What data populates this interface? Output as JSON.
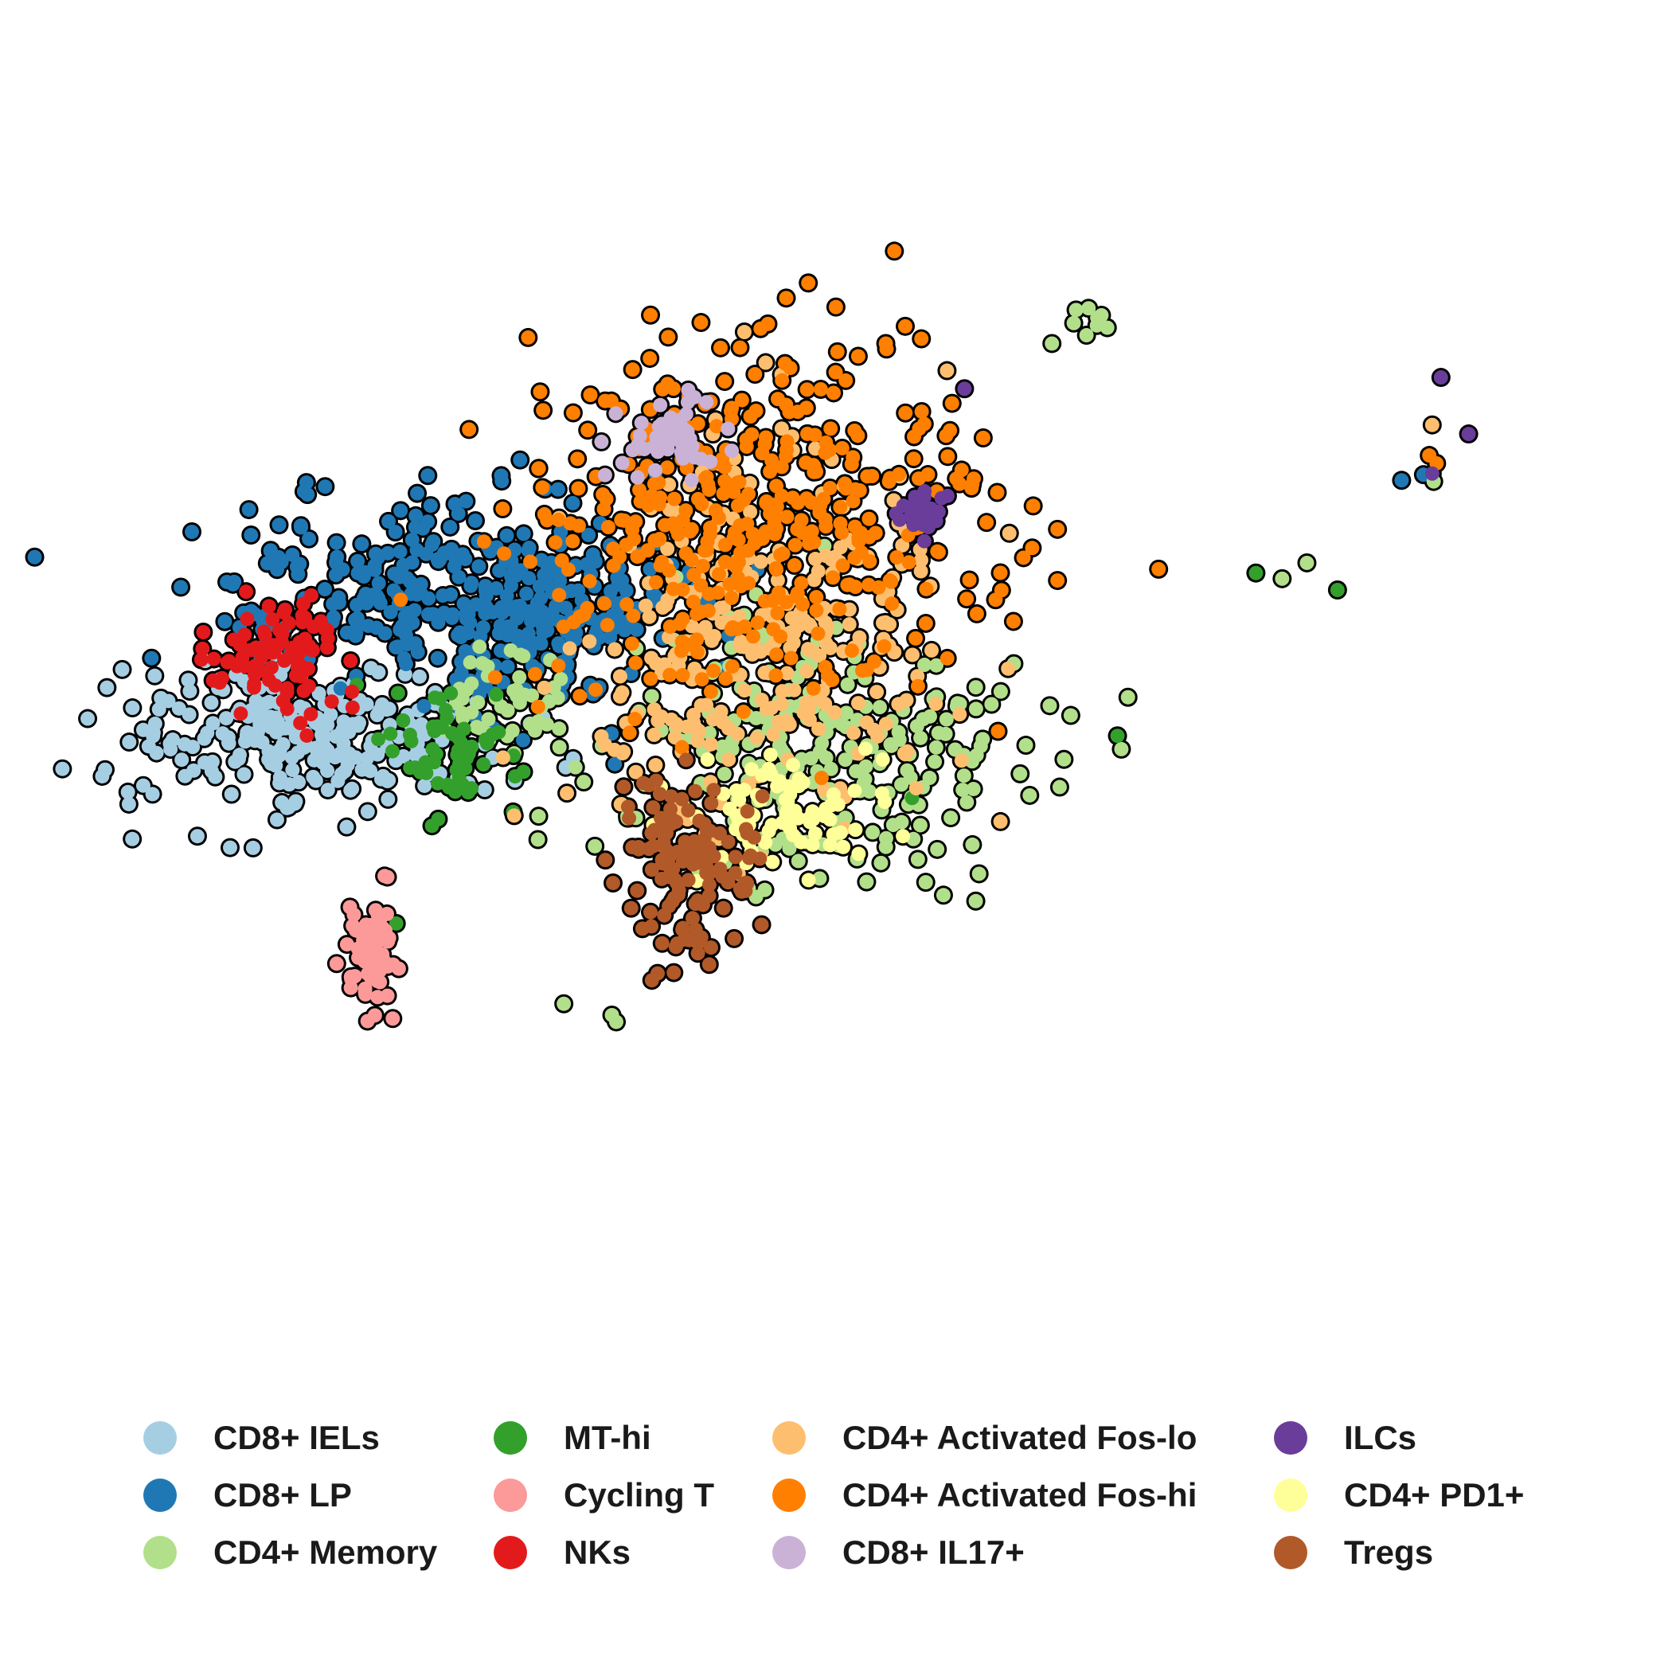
{
  "chart_data": {
    "type": "scatter",
    "title": "",
    "xlabel": "",
    "ylabel": "",
    "axes_visible": false,
    "grid": false,
    "legend_position": "bottom",
    "point_outline_color": "#000000",
    "xlim": [
      0,
      100
    ],
    "ylim": [
      0,
      100
    ],
    "series": [
      {
        "name": "CD8+ IELs",
        "color": "#A6CEE3",
        "blobs": [
          [
            13,
            49,
            8,
            4,
            260
          ]
        ],
        "points": []
      },
      {
        "name": "CD8+ LP",
        "color": "#1F78B4",
        "blobs": [
          [
            22,
            62,
            10,
            5,
            320
          ],
          [
            29,
            58,
            5,
            4,
            80
          ]
        ],
        "points": [
          [
            27.5,
            73.4
          ],
          [
            89.5,
            72.1
          ],
          [
            88.0,
            71.6
          ],
          [
            34.0,
            46.5
          ]
        ]
      },
      {
        "name": "CD4+ Memory",
        "color": "#B2DF8A",
        "blobs": [
          [
            48,
            47,
            9,
            8,
            240
          ],
          [
            26,
            52,
            3,
            3,
            50
          ],
          [
            66,
            86,
            1,
            1,
            6
          ]
        ],
        "points": [
          [
            64.0,
            83.7
          ],
          [
            67.4,
            86.2
          ],
          [
            67.8,
            85.1
          ],
          [
            90.2,
            71.5
          ],
          [
            81.5,
            64.3
          ],
          [
            79.8,
            62.9
          ],
          [
            59.0,
            36.8
          ],
          [
            30.5,
            25.3
          ],
          [
            33.8,
            24.3
          ],
          [
            34.1,
            23.7
          ],
          [
            30.2,
            48.0
          ]
        ]
      },
      {
        "name": "MT-hi",
        "color": "#33A02C",
        "blobs": [
          [
            23,
            48,
            3,
            3,
            60
          ]
        ],
        "points": [
          [
            78.0,
            63.4
          ],
          [
            83.6,
            61.9
          ],
          [
            68.5,
            49.0
          ],
          [
            54.4,
            43.5
          ],
          [
            19.0,
            32.4
          ]
        ]
      },
      {
        "name": "Cycling T",
        "color": "#FB9A99",
        "blobs": [
          [
            17.5,
            29,
            1.2,
            3,
            70
          ]
        ],
        "points": [
          [
            18.2,
            36.6
          ]
        ]
      },
      {
        "name": "NKs",
        "color": "#E31A1C",
        "blobs": [
          [
            11,
            56,
            3,
            3,
            90
          ]
        ],
        "points": []
      },
      {
        "name": "CD4+ Activated Fos-lo",
        "color": "#FDBF6F",
        "blobs": [
          [
            44,
            58,
            8,
            10,
            300
          ]
        ],
        "points": [
          [
            56.8,
            81.3
          ],
          [
            90.1,
            76.5
          ]
        ]
      },
      {
        "name": "CD4+ Activated Fos-hi",
        "color": "#FF7F00",
        "blobs": [
          [
            43,
            68,
            10,
            9,
            420
          ]
        ],
        "points": [
          [
            52.6,
            83.7
          ],
          [
            60.3,
            49.4
          ],
          [
            89.9,
            73.8
          ],
          [
            90.4,
            73.1
          ]
        ]
      },
      {
        "name": "CD8+ IL17+",
        "color": "#CAB2D6",
        "blobs": [
          [
            38,
            75,
            3,
            2,
            50
          ]
        ],
        "points": []
      },
      {
        "name": "ILCs",
        "color": "#6A3D9A",
        "blobs": [
          [
            55,
            69,
            1.2,
            1.2,
            30
          ]
        ],
        "points": [
          [
            58.0,
            79.7
          ],
          [
            90.7,
            80.7
          ],
          [
            92.6,
            75.7
          ],
          [
            90.1,
            72.2
          ]
        ]
      },
      {
        "name": "CD4+ PD1+",
        "color": "#FFFF99",
        "blobs": [
          [
            46,
            42,
            4,
            3,
            80
          ]
        ],
        "points": []
      },
      {
        "name": "Tregs",
        "color": "#B15928",
        "blobs": [
          [
            39,
            38,
            3,
            5,
            130
          ]
        ],
        "points": []
      }
    ]
  }
}
